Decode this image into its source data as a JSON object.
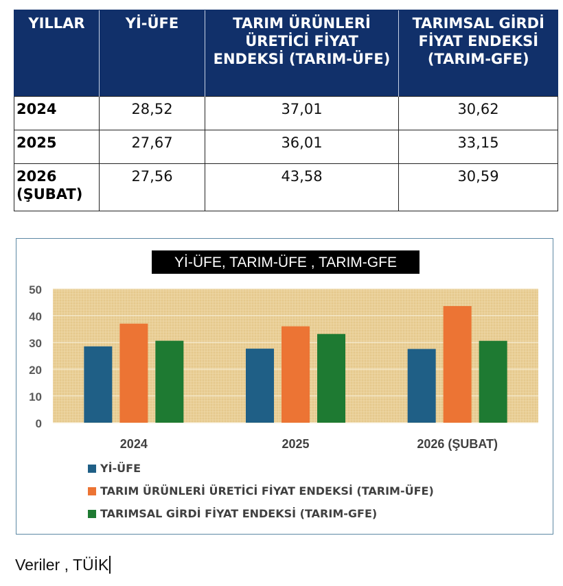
{
  "table": {
    "headers": [
      "YILLAR",
      "Yİ-ÜFE",
      "TARIM ÜRÜNLERİ ÜRETİCİ FİYAT ENDEKSİ (TARIM-ÜFE)",
      "TARIMSAL GİRDİ FİYAT ENDEKSİ (TARIM-GFE)"
    ],
    "rows": [
      {
        "year": "2024",
        "yi_ufe": "28,52",
        "tarim_ufe": "37,01",
        "tarim_gfe": "30,62"
      },
      {
        "year": "2025",
        "yi_ufe": "27,67",
        "tarim_ufe": "36,01",
        "tarim_gfe": "33,15"
      },
      {
        "year": "2026 (ŞUBAT)",
        "yi_ufe": "27,56",
        "tarim_ufe": "43,58",
        "tarim_gfe": "30,59"
      }
    ]
  },
  "chart_data": {
    "type": "bar",
    "title": "Yİ-ÜFE, TARIM-ÜFE , TARIM-GFE",
    "categories": [
      "2024",
      "2025",
      "2026 (ŞUBAT)"
    ],
    "series": [
      {
        "name": "Yİ-ÜFE",
        "values": [
          28.52,
          27.67,
          27.56
        ],
        "color": "#1f5f86"
      },
      {
        "name": "TARIM ÜRÜNLERİ ÜRETİCİ FİYAT ENDEKSİ (TARIM-ÜFE)",
        "values": [
          37.01,
          36.01,
          43.58
        ],
        "color": "#ec7434"
      },
      {
        "name": "TARIMSAL GİRDİ FİYAT ENDEKSİ (TARIM-GFE)",
        "values": [
          30.62,
          33.15,
          30.59
        ],
        "color": "#1e7a32"
      }
    ],
    "ylim": [
      0,
      50
    ],
    "yticks": [
      0,
      10,
      20,
      30,
      40,
      50
    ],
    "xlabel": "",
    "ylabel": "",
    "grid": true,
    "legend": "bottom-left",
    "plot_background": "#e9cf97"
  },
  "footer": {
    "note": "Veriler , TÜİK"
  }
}
